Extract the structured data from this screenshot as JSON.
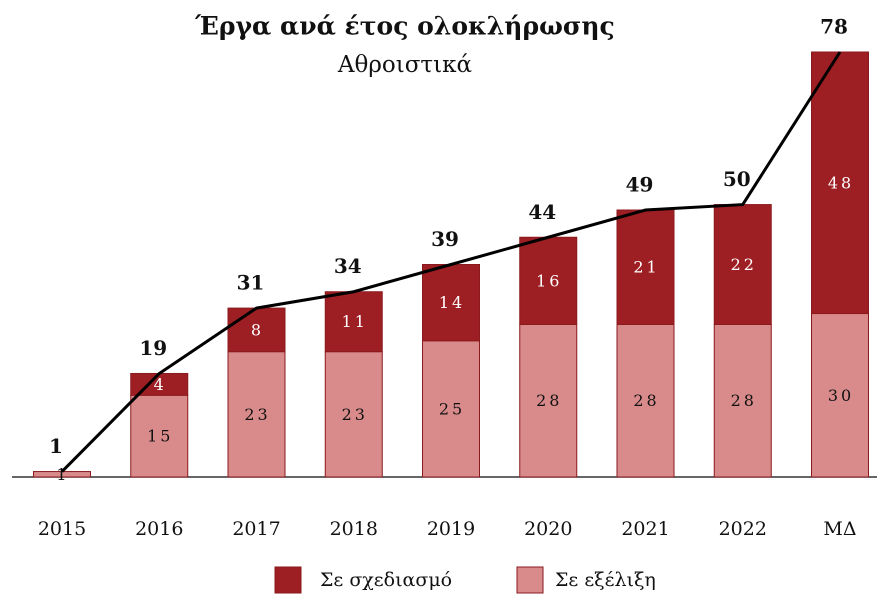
{
  "chart_data": {
    "type": "stacked-bar-line",
    "title": "Έργα ανά έτος ολοκλήρωσης",
    "subtitle": "Αθροιστικά",
    "categories": [
      "2015",
      "2016",
      "2017",
      "2018",
      "2019",
      "2020",
      "2021",
      "2022",
      "ΜΔ"
    ],
    "series": [
      {
        "name": "Σε εξέλιξη",
        "color": "#d98b8b",
        "values": [
          1,
          15,
          23,
          23,
          25,
          28,
          28,
          28,
          30
        ]
      },
      {
        "name": "Σε σχεδιασμό",
        "color": "#9e1f23",
        "values": [
          null,
          4,
          8,
          11,
          14,
          16,
          21,
          22,
          48
        ]
      }
    ],
    "totals": {
      "color": "#000000",
      "values": [
        1,
        19,
        31,
        34,
        39,
        44,
        49,
        50,
        78
      ]
    },
    "ylim": [
      0,
      78
    ]
  }
}
